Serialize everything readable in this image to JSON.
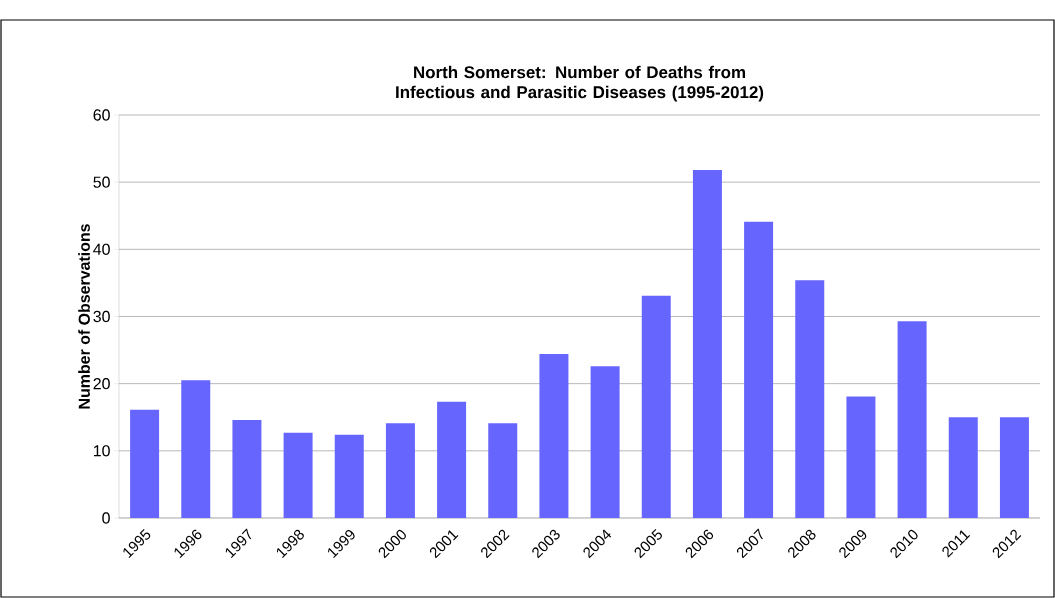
{
  "chart_data": {
    "type": "bar",
    "title": "North Somerset:  Number of Deaths from Infectious and Parasitic Diseases (1995-2012)",
    "ylabel": "Number of Observations",
    "categories": [
      "1995",
      "1996",
      "1997",
      "1998",
      "1999",
      "2000",
      "2001",
      "2002",
      "2003",
      "2004",
      "2005",
      "2006",
      "2007",
      "2008",
      "2009",
      "2010",
      "2011",
      "2012"
    ],
    "values": [
      16.1,
      20.5,
      14.6,
      12.7,
      12.4,
      14.1,
      17.3,
      14.1,
      24.4,
      22.6,
      33.1,
      51.8,
      44.1,
      35.4,
      18.1,
      29.3,
      15.0,
      15.0
    ],
    "color": "#6666ff",
    "ylim": [
      0,
      60
    ],
    "yticks": [
      0,
      10,
      20,
      30,
      40,
      50,
      60
    ],
    "grid": "y"
  }
}
